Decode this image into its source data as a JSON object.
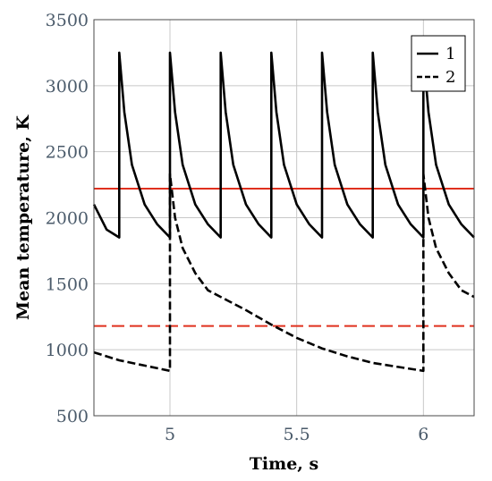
{
  "chart_data": {
    "type": "line",
    "xlabel": "Time, s",
    "ylabel": "Mean temperature, K",
    "xlim": [
      4.7,
      6.2
    ],
    "ylim": [
      500,
      3500
    ],
    "xticks": [
      5,
      5.5,
      6
    ],
    "xtick_labels": [
      "5",
      "5.5",
      "6"
    ],
    "yticks": [
      500,
      1000,
      1500,
      2000,
      2500,
      3000,
      3500
    ],
    "ytick_labels": [
      "500",
      "1000",
      "1500",
      "2000",
      "2500",
      "3000",
      "3500"
    ],
    "grid": true,
    "legend_position": "top-right",
    "series": [
      {
        "name": "1",
        "style": "solid",
        "color": "#000000",
        "x": [
          4.7,
          4.75,
          4.8,
          4.8,
          4.82,
          4.85,
          4.9,
          4.95,
          5.0,
          5.0,
          5.02,
          5.05,
          5.1,
          5.15,
          5.2,
          5.2,
          5.22,
          5.25,
          5.3,
          5.35,
          5.4,
          5.4,
          5.42,
          5.45,
          5.5,
          5.55,
          5.6,
          5.6,
          5.62,
          5.65,
          5.7,
          5.75,
          5.8,
          5.8,
          5.82,
          5.85,
          5.9,
          5.95,
          6.0,
          6.0,
          6.02,
          6.05,
          6.1,
          6.15,
          6.2
        ],
        "y": [
          2100,
          1910,
          1850,
          3250,
          2800,
          2400,
          2100,
          1950,
          1850,
          3250,
          2800,
          2400,
          2100,
          1950,
          1850,
          3250,
          2800,
          2400,
          2100,
          1950,
          1850,
          3250,
          2800,
          2400,
          2100,
          1950,
          1850,
          3250,
          2800,
          2400,
          2100,
          1950,
          1850,
          3250,
          2800,
          2400,
          2100,
          1950,
          1850,
          3250,
          2800,
          2400,
          2100,
          1950,
          1850
        ]
      },
      {
        "name": "2",
        "style": "dashed",
        "color": "#000000",
        "x": [
          4.7,
          4.8,
          4.9,
          5.0,
          5.0,
          5.02,
          5.05,
          5.1,
          5.15,
          5.2,
          5.3,
          5.4,
          5.5,
          5.6,
          5.7,
          5.8,
          5.9,
          6.0,
          6.0,
          6.02,
          6.05,
          6.1,
          6.15,
          6.2
        ],
        "y": [
          980,
          920,
          880,
          840,
          2330,
          2000,
          1770,
          1580,
          1450,
          1400,
          1300,
          1190,
          1090,
          1010,
          950,
          900,
          870,
          840,
          2330,
          2000,
          1770,
          1580,
          1450,
          1400
        ]
      }
    ],
    "reference_lines": [
      {
        "y": 2220,
        "style": "solid",
        "color": "#e0301e"
      },
      {
        "y": 1180,
        "style": "dashed",
        "color": "#e0301e"
      }
    ]
  }
}
